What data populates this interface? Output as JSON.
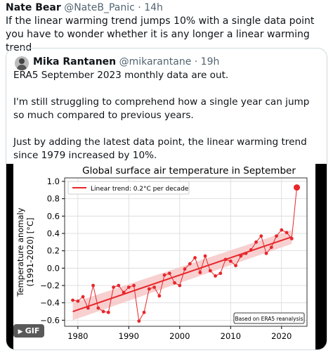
{
  "tweet": {
    "author": "Nate Bear",
    "handle": "@NateB_Panic",
    "time": "14h",
    "text": "If the linear warming trend jumps 10% with a single data point you have to wonder whether it is any longer a linear warming trend",
    "quote": {
      "author": "Mika Rantanen",
      "handle": "@mikarantane",
      "time": "19h",
      "paragraphs": [
        "ERA5 September 2023 monthly data are out.",
        "I'm still struggling to comprehend how a single year can jump so much compared to previous years.",
        "Just by adding the latest data point, the linear warming trend since 1979 increased by 10%."
      ],
      "media_badge": "GIF"
    }
  },
  "chart_data": {
    "type": "line",
    "title": "Global surface air temperature in September",
    "ylabel": [
      "Temperature anomaly",
      "(1991-2020) [°C]"
    ],
    "annotation": "Based on ERA5 reanalysis",
    "x": [
      1979,
      1980,
      1981,
      1982,
      1983,
      1984,
      1985,
      1986,
      1987,
      1988,
      1989,
      1990,
      1991,
      1992,
      1993,
      1994,
      1995,
      1996,
      1997,
      1998,
      1999,
      2000,
      2001,
      2002,
      2003,
      2004,
      2005,
      2006,
      2007,
      2008,
      2009,
      2010,
      2011,
      2012,
      2013,
      2014,
      2015,
      2016,
      2017,
      2018,
      2019,
      2020,
      2021,
      2022,
      2023
    ],
    "series": [
      {
        "color": "#e8262a",
        "values": [
          -0.37,
          -0.38,
          -0.33,
          -0.46,
          -0.2,
          -0.46,
          -0.5,
          -0.51,
          -0.22,
          -0.2,
          -0.28,
          -0.22,
          -0.2,
          -0.61,
          -0.51,
          -0.24,
          -0.22,
          -0.32,
          -0.08,
          -0.06,
          -0.17,
          -0.2,
          -0.01,
          0.05,
          0.12,
          -0.05,
          0.14,
          -0.03,
          -0.09,
          -0.06,
          0.1,
          0.08,
          0.03,
          0.14,
          0.17,
          0.21,
          0.3,
          0.37,
          0.17,
          0.24,
          0.37,
          0.44,
          0.41,
          0.34,
          0.93
        ]
      }
    ],
    "trend": {
      "name": "Linear trend: 0.2°C per decade",
      "color": "#e8262a",
      "band_color": "#f6c4c4",
      "x": [
        1979,
        2022
      ],
      "values": [
        -0.5,
        0.36
      ],
      "lower": [
        -0.6,
        0.28
      ],
      "upper": [
        -0.4,
        0.44
      ]
    },
    "xlim": [
      1977.4,
      2025.0
    ],
    "ylim": [
      -0.67,
      1.04
    ],
    "xticks": [
      1980,
      1990,
      2000,
      2010,
      2020
    ],
    "yticks": [
      {
        "value": -0.6,
        "label": "−0.6"
      },
      {
        "value": -0.4,
        "label": "−0.4"
      },
      {
        "value": -0.2,
        "label": "−0.2"
      },
      {
        "value": 0,
        "label": "0.0"
      },
      0.2,
      0.4,
      0.6,
      0.8,
      {
        "value": 1,
        "label": "1.0"
      }
    ],
    "grid": true
  }
}
